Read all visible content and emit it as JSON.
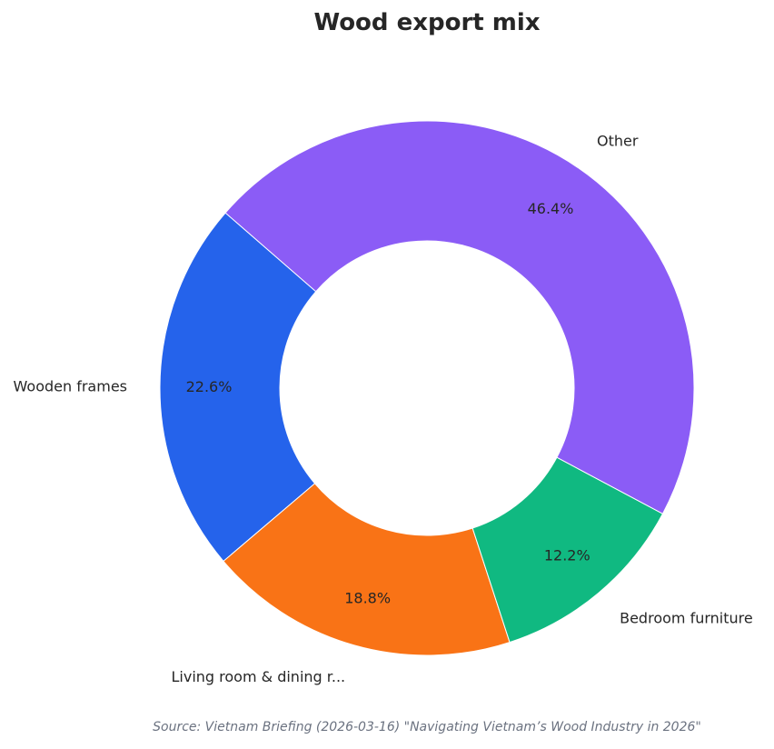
{
  "chart_data": {
    "type": "pie",
    "donut": true,
    "title": "Wood export mix",
    "categories": [
      "Wooden frames",
      "Living room & dining r...",
      "Bedroom furniture",
      "Other"
    ],
    "values": [
      22.6,
      18.8,
      12.2,
      46.4
    ],
    "value_labels": [
      "22.6%",
      "18.8%",
      "12.2%",
      "46.4%"
    ],
    "colors": [
      "#2563eb",
      "#f97316",
      "#10b981",
      "#8b5cf6"
    ],
    "start_angle_deg": 139,
    "direction": "counterclockwise",
    "legend": "none",
    "source": "Source: Vietnam Briefing (2026-03-16) \"Navigating Vietnam’s Wood Industry in 2026\""
  }
}
